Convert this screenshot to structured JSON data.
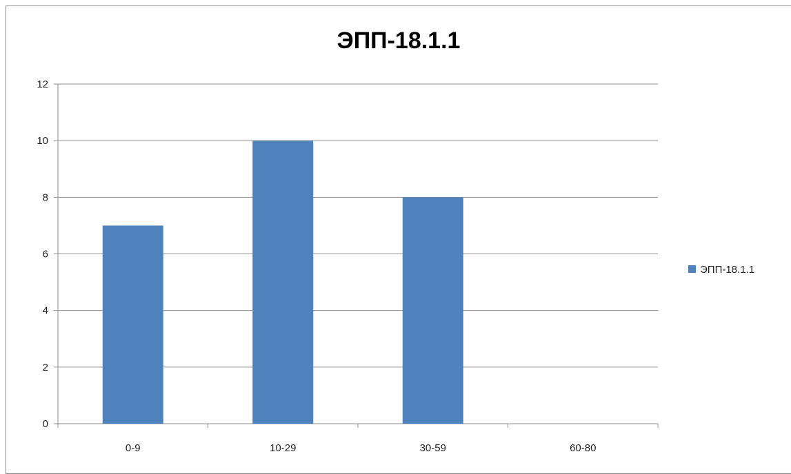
{
  "chart_data": {
    "type": "bar",
    "title": "ЭПП-18.1.1",
    "categories": [
      "0-9",
      "10-29",
      "30-59",
      "60-80"
    ],
    "series": [
      {
        "name": "ЭПП-18.1.1",
        "values": [
          7,
          10,
          8,
          0
        ],
        "color": "#4F81BD"
      }
    ],
    "ylim": [
      0,
      12
    ],
    "yticks": [
      "0",
      "2",
      "4",
      "6",
      "8",
      "10",
      "12"
    ],
    "grid": true,
    "legend": "right"
  }
}
